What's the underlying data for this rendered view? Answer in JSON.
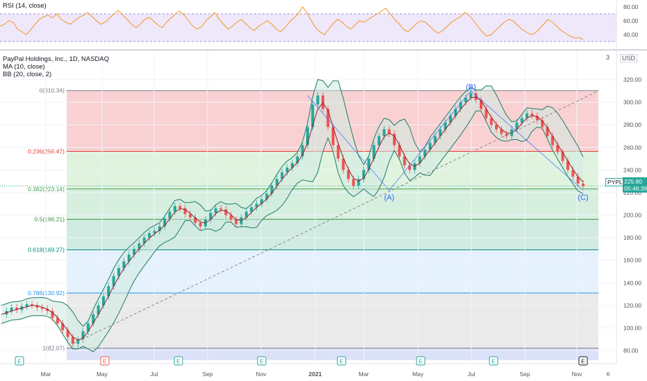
{
  "rsi_legend": "RSI (14, close)",
  "main_legend": {
    "title": "PayPal Holdings, Inc., 1D, NASDAQ",
    "ma": "MA (10, close)",
    "bb": "BB (20, close, 2)"
  },
  "currency": "USD",
  "scale_marker": "3",
  "last_price": {
    "ticker": "PYPL",
    "price": "225.80",
    "countdown": "05:46:39",
    "color": "#26a69a"
  },
  "icons": {
    "earnings": "earnings-e-icon",
    "earnings_upcoming": "earnings-upcoming-e-icon",
    "earnings_selected": "earnings-selected-e-icon"
  },
  "colors": {
    "rsi_line": "#f7931a",
    "rsi_band": "#e1d5f7",
    "ma_line": "#9c1c2a",
    "bb_line": "#1e7a64",
    "bb_fill": "#cfe9e0",
    "candle_up": "#26a69a",
    "candle_down": "#ef5350",
    "trend_line": "#2962ff",
    "dashed_line": "#888888"
  },
  "chart_data": [
    {
      "type": "line",
      "name": "RSI",
      "x_index_range": [
        0,
        600
      ],
      "ylim": [
        20,
        90
      ],
      "y_ticks": [
        "80.00",
        "60.00",
        "40.00"
      ],
      "bands": [
        70,
        30
      ],
      "values": [
        52,
        55,
        60,
        58,
        48,
        44,
        40,
        47,
        55,
        62,
        66,
        68,
        64,
        70,
        62,
        58,
        55,
        60,
        65,
        68,
        72,
        66,
        60,
        55,
        58,
        64,
        70,
        75,
        68,
        62,
        55,
        50,
        55,
        62,
        65,
        60,
        54,
        50,
        58,
        64,
        70,
        74,
        68,
        60,
        52,
        48,
        52,
        60,
        66,
        72,
        62,
        55,
        48,
        52,
        58,
        62,
        56,
        50,
        46,
        52,
        56,
        60,
        55,
        48,
        44,
        50,
        58,
        64,
        70,
        80,
        72,
        60,
        50,
        44,
        40,
        48,
        56,
        62,
        58,
        52,
        48,
        54,
        60,
        58,
        62,
        66,
        70,
        74,
        78,
        70,
        62,
        56,
        48,
        44,
        50,
        56,
        60,
        58,
        52,
        46,
        42,
        46,
        52,
        58,
        62,
        66,
        72,
        68,
        60,
        52,
        44,
        38,
        40,
        46,
        52,
        58,
        62,
        60,
        54,
        48,
        44,
        40,
        42,
        48,
        55,
        62,
        58,
        52,
        46,
        42,
        38,
        35,
        36,
        33
      ]
    },
    {
      "type": "line",
      "name": "PYPL",
      "y_ticks": [
        "320.00",
        "300.00",
        "280.00",
        "260.00",
        "240.00",
        "220.00",
        "200.00",
        "180.00",
        "160.00",
        "140.00",
        "120.00",
        "100.00",
        "80.00"
      ],
      "ylim": [
        75,
        330
      ],
      "x_tick_labels": [
        "Mar",
        "May",
        "Jul",
        "Sep",
        "Nov",
        "2021",
        "Mar",
        "May",
        "Jul",
        "Sep",
        "Nov",
        "6"
      ],
      "close": [
        112,
        115,
        118,
        116,
        119,
        121,
        120,
        118,
        117,
        115,
        109,
        104,
        98,
        92,
        86,
        90,
        97,
        104,
        112,
        120,
        128,
        137,
        146,
        153,
        159,
        165,
        170,
        175,
        180,
        184,
        186,
        190,
        197,
        203,
        208,
        206,
        201,
        198,
        193,
        190,
        196,
        202,
        206,
        205,
        200,
        196,
        192,
        198,
        203,
        207,
        210,
        214,
        219,
        226,
        232,
        238,
        242,
        246,
        252,
        262,
        278,
        298,
        306,
        294,
        278,
        262,
        250,
        240,
        232,
        226,
        232,
        240,
        250,
        262,
        270,
        276,
        272,
        262,
        252,
        244,
        240,
        246,
        252,
        258,
        264,
        270,
        276,
        282,
        288,
        294,
        300,
        304,
        308,
        302,
        294,
        286,
        280,
        276,
        272,
        270,
        276,
        282,
        286,
        290,
        288,
        284,
        278,
        270,
        262,
        256,
        248,
        240,
        234,
        228,
        225.8
      ]
    },
    {
      "type": "table",
      "name": "Fibonacci retracement",
      "levels": [
        {
          "ratio": "0",
          "price": 310.34,
          "label": "0(310.34)",
          "color": "#787b86",
          "fill": "#f7c2c4"
        },
        {
          "ratio": "0.236",
          "price": 256.47,
          "label": "0.236(256.47)",
          "color": "#e53935",
          "fill": "#d6efd4"
        },
        {
          "ratio": "0.382",
          "price": 223.14,
          "label": "0.382(223.14)",
          "color": "#43a047",
          "fill": "#c9ead4"
        },
        {
          "ratio": "0.5",
          "price": 196.21,
          "label": "0.5(196.21)",
          "color": "#388e3c",
          "fill": "#c2e4d8"
        },
        {
          "ratio": "0.618",
          "price": 169.27,
          "label": "0.618(169.27)",
          "color": "#00897b",
          "fill": "#dceefc"
        },
        {
          "ratio": "0.786",
          "price": 130.92,
          "label": "0.786(130.92)",
          "color": "#2196f3",
          "fill": "#e3e3e3"
        },
        {
          "ratio": "1",
          "price": 82.07,
          "label": "1(82.07)",
          "color": "#787b86",
          "fill": "#cfd7f7"
        }
      ]
    },
    {
      "type": "scatter",
      "name": "Elliott wave labels",
      "points": [
        {
          "label": "(A)",
          "x_index": 76,
          "y": 216
        },
        {
          "label": "(B)",
          "x_index": 92,
          "y": 314
        },
        {
          "label": "(C)",
          "x_index": 114,
          "y": 216
        }
      ]
    }
  ]
}
